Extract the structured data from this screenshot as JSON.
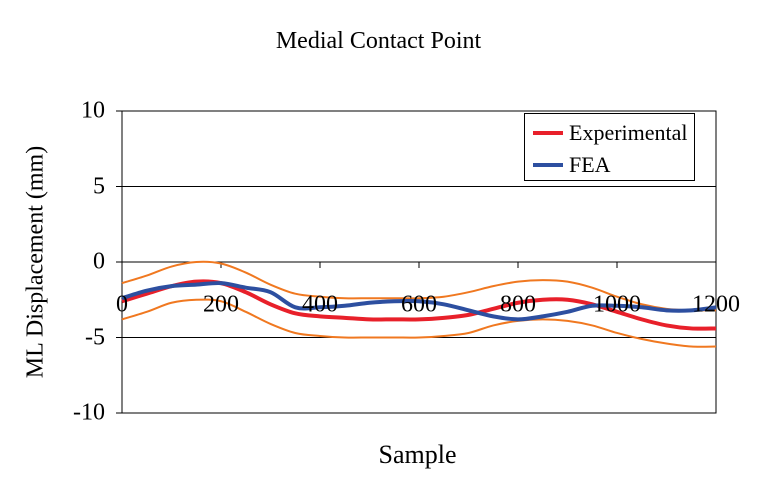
{
  "chart_data": {
    "type": "line",
    "title": "Medial Contact Point",
    "xlabel": "Sample",
    "ylabel": "ML Displacement (mm)",
    "xlim": [
      0,
      1200
    ],
    "ylim": [
      -10,
      10
    ],
    "x_ticks": [
      "0",
      "200",
      "400",
      "600",
      "800",
      "1000",
      "1200"
    ],
    "y_ticks": [
      "10",
      "5",
      "0",
      "-5",
      "-10"
    ],
    "grid": "horizontal",
    "legend_position": "top-right",
    "series": [
      {
        "name": "Experimental",
        "color": "#e8202a",
        "x": [
          0,
          50,
          100,
          150,
          200,
          250,
          300,
          350,
          400,
          450,
          500,
          550,
          600,
          650,
          700,
          750,
          800,
          850,
          900,
          950,
          1000,
          1050,
          1100,
          1150,
          1200
        ],
        "y": [
          -2.6,
          -2.1,
          -1.6,
          -1.3,
          -1.4,
          -2.0,
          -2.8,
          -3.4,
          -3.6,
          -3.7,
          -3.8,
          -3.8,
          -3.8,
          -3.7,
          -3.5,
          -3.1,
          -2.7,
          -2.5,
          -2.5,
          -2.8,
          -3.3,
          -3.8,
          -4.2,
          -4.4,
          -4.4
        ]
      },
      {
        "name": "FEA",
        "color": "#2d4fa0",
        "x": [
          0,
          50,
          100,
          150,
          200,
          250,
          300,
          350,
          400,
          450,
          500,
          550,
          600,
          650,
          700,
          750,
          800,
          850,
          900,
          950,
          1000,
          1050,
          1100,
          1150,
          1200
        ],
        "y": [
          -2.4,
          -1.9,
          -1.6,
          -1.5,
          -1.4,
          -1.7,
          -2.0,
          -3.0,
          -3.0,
          -2.9,
          -2.7,
          -2.6,
          -2.6,
          -2.8,
          -3.2,
          -3.6,
          -3.8,
          -3.6,
          -3.3,
          -2.9,
          -2.9,
          -3.0,
          -3.2,
          -3.2,
          -3.0
        ]
      },
      {
        "color": "#f07820",
        "x": [
          0,
          50,
          100,
          150,
          200,
          250,
          300,
          350,
          400,
          450,
          500,
          550,
          600,
          650,
          700,
          750,
          800,
          850,
          900,
          950,
          1000,
          1050,
          1100,
          1150,
          1200
        ],
        "y": [
          -1.4,
          -0.9,
          -0.3,
          0.0,
          -0.1,
          -0.7,
          -1.5,
          -2.1,
          -2.3,
          -2.4,
          -2.4,
          -2.4,
          -2.4,
          -2.3,
          -2.0,
          -1.6,
          -1.3,
          -1.2,
          -1.3,
          -1.7,
          -2.3,
          -2.8,
          -3.1,
          -3.2,
          -3.2
        ]
      },
      {
        "color": "#f07820",
        "x": [
          0,
          50,
          100,
          150,
          200,
          250,
          300,
          350,
          400,
          450,
          500,
          550,
          600,
          650,
          700,
          750,
          800,
          850,
          900,
          950,
          1000,
          1050,
          1100,
          1150,
          1200
        ],
        "y": [
          -3.8,
          -3.3,
          -2.7,
          -2.5,
          -2.6,
          -3.3,
          -4.1,
          -4.7,
          -4.9,
          -5.0,
          -5.0,
          -5.0,
          -5.0,
          -4.9,
          -4.7,
          -4.2,
          -3.9,
          -3.8,
          -3.9,
          -4.2,
          -4.7,
          -5.1,
          -5.4,
          -5.6,
          -5.6
        ]
      }
    ]
  }
}
